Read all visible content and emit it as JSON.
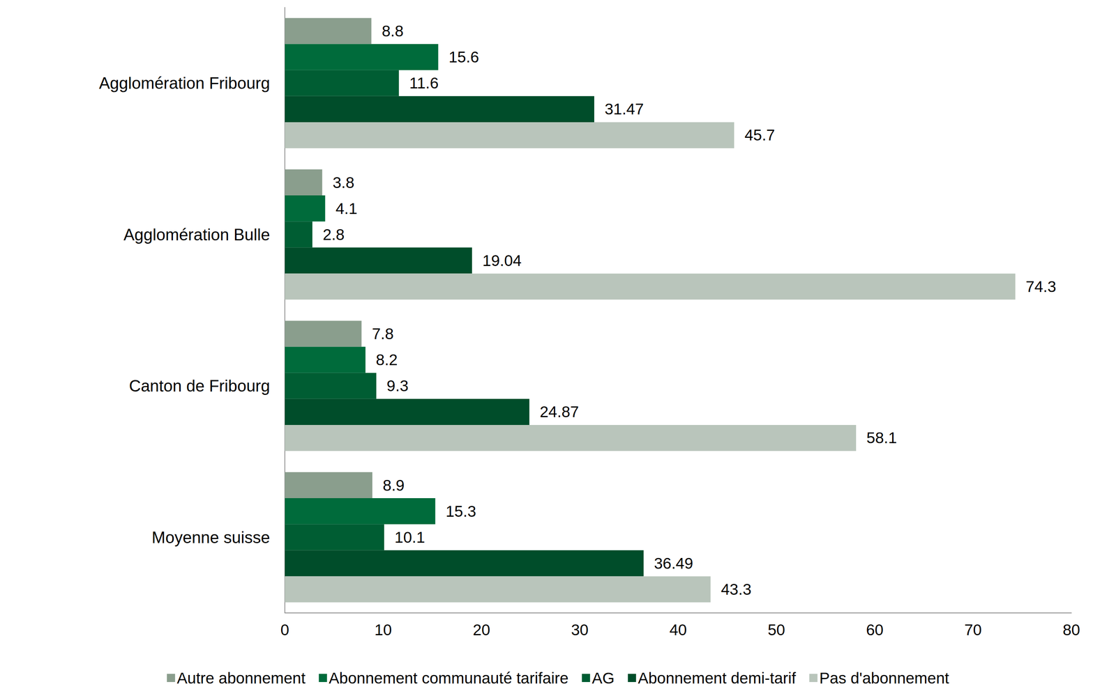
{
  "chart_data": {
    "type": "bar",
    "orientation": "horizontal",
    "categories": [
      "Agglomération Fribourg",
      "Agglomération Bulle",
      "Canton de Fribourg",
      "Moyenne suisse"
    ],
    "series": [
      {
        "name": "Autre abonnement",
        "color": "#8a9e8d",
        "values": [
          8.8,
          3.8,
          7.8,
          8.9
        ]
      },
      {
        "name": "Abonnement communauté tarifaire",
        "color": "#006b3b",
        "values": [
          15.6,
          4.1,
          8.2,
          15.3
        ]
      },
      {
        "name": "AG",
        "color": "#005d33",
        "values": [
          11.6,
          2.8,
          9.3,
          10.1
        ]
      },
      {
        "name": "Abonnement demi-tarif",
        "color": "#004d2a",
        "values": [
          31.47,
          19.04,
          24.87,
          36.49
        ]
      },
      {
        "name": "Pas d'abonnement",
        "color": "#b9c5bb",
        "values": [
          45.7,
          74.3,
          58.1,
          43.3
        ]
      }
    ],
    "xlim": [
      0,
      80
    ],
    "xticks": [
      0,
      10,
      20,
      30,
      40,
      50,
      60,
      70,
      80
    ],
    "grid": false,
    "legend": "bottom",
    "data_labels": true
  }
}
